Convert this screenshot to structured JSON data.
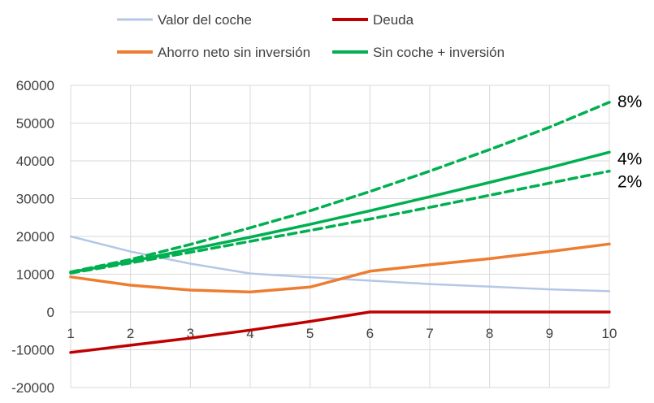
{
  "chart_data": {
    "type": "line",
    "x": [
      1,
      2,
      3,
      4,
      5,
      6,
      7,
      8,
      9,
      10
    ],
    "ylim": [
      -20000,
      60000
    ],
    "yticks": [
      -20000,
      -10000,
      0,
      10000,
      20000,
      30000,
      40000,
      50000,
      60000
    ],
    "xticks": [
      1,
      2,
      3,
      4,
      5,
      6,
      7,
      8,
      9,
      10
    ],
    "grid": true,
    "legend_position": "top",
    "series": [
      {
        "name": "Valor del coche",
        "color": "#b4c7e7",
        "dash": "solid",
        "values": [
          20000,
          16000,
          12800,
          10200,
          9200,
          8300,
          7400,
          6700,
          6000,
          5500
        ]
      },
      {
        "name": "Deuda",
        "color": "#c00000",
        "dash": "solid",
        "values": [
          -10700,
          -8800,
          -6900,
          -4800,
          -2500,
          0,
          0,
          0,
          0,
          0
        ]
      },
      {
        "name": "Ahorro neto sin inversión",
        "color": "#ed7d31",
        "dash": "solid",
        "values": [
          9300,
          7100,
          5800,
          5300,
          6600,
          10800,
          12500,
          14100,
          16000,
          18000
        ]
      },
      {
        "name": "Sin coche + inversión",
        "color": "#00b050",
        "dash": "solid",
        "values": [
          10500,
          13400,
          16600,
          19800,
          23200,
          26800,
          30500,
          34300,
          38200,
          42300
        ]
      },
      {
        "name": "",
        "color": "#00b050",
        "dash": "dashed",
        "values": [
          10600,
          13900,
          17900,
          22300,
          26800,
          31900,
          37300,
          43000,
          48900,
          55500
        ]
      },
      {
        "name": "",
        "color": "#00b050",
        "dash": "dashed",
        "values": [
          10300,
          13000,
          15800,
          18700,
          21600,
          24600,
          27700,
          30900,
          34100,
          37300
        ]
      }
    ],
    "annotations": [
      {
        "text": "8%",
        "x": 10,
        "y": 55500
      },
      {
        "text": "4%",
        "x": 10,
        "y": 42300
      },
      {
        "text": "2%",
        "x": 10,
        "y": 37300
      }
    ]
  }
}
